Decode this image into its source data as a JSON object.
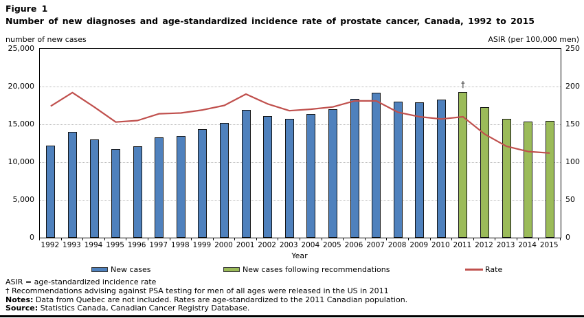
{
  "figure": {
    "label": "Figure 1",
    "title": "Number of new diagnoses and age-standardized incidence rate of prostate cancer, Canada, 1992 to 2015"
  },
  "axes": {
    "left_title": "number of new cases",
    "right_title": "ASIR (per 100,000 men)",
    "x_title": "Year",
    "left_ticks": [
      "25,000",
      "20,000",
      "15,000",
      "10,000",
      "5,000",
      "0"
    ],
    "right_ticks": [
      "250",
      "200",
      "150",
      "100",
      "50",
      "0"
    ]
  },
  "chart_data": {
    "type": "bar+line",
    "categories": [
      1992,
      1993,
      1994,
      1995,
      1996,
      1997,
      1998,
      1999,
      2000,
      2001,
      2002,
      2003,
      2004,
      2005,
      2006,
      2007,
      2008,
      2009,
      2010,
      2011,
      2012,
      2013,
      2014,
      2015
    ],
    "series": [
      {
        "name": "New cases",
        "type": "bar",
        "axis": "left",
        "color": "#4F81BD",
        "values": [
          12200,
          14000,
          13000,
          11700,
          12100,
          13300,
          13500,
          14400,
          15200,
          16900,
          16100,
          15700,
          16400,
          17000,
          18400,
          19200,
          18000,
          17900,
          18300,
          null,
          null,
          null,
          null,
          null
        ]
      },
      {
        "name": "New cases following recommendations",
        "type": "bar",
        "axis": "left",
        "color": "#9BBB59",
        "values": [
          null,
          null,
          null,
          null,
          null,
          null,
          null,
          null,
          null,
          null,
          null,
          null,
          null,
          null,
          null,
          null,
          null,
          null,
          null,
          19300,
          17300,
          15700,
          15400,
          15500
        ]
      },
      {
        "name": "Rate",
        "type": "line",
        "axis": "right",
        "color": "#C0504D",
        "values": [
          174,
          192,
          173,
          153,
          155,
          164,
          165,
          169,
          175,
          190,
          177,
          168,
          170,
          173,
          181,
          181,
          166,
          160,
          157,
          160,
          137,
          121,
          114,
          112
        ]
      }
    ],
    "left_axis": {
      "min": 0,
      "max": 25000,
      "step": 5000
    },
    "right_axis": {
      "min": 0,
      "max": 250,
      "step": 50
    },
    "annotation": {
      "symbol": "†",
      "year": 2011
    },
    "grid": "horizontal-dotted",
    "legend_position": "bottom"
  },
  "footnotes": [
    {
      "bold": "",
      "text": "ASIR = age-standardized incidence rate"
    },
    {
      "bold": "",
      "text": "† Recommendations advising against PSA testing for men of all ages were released in the US in 2011"
    },
    {
      "bold": "Notes:",
      "text": " Data from Quebec are not included. Rates are age-standardized to the 2011 Canadian population."
    },
    {
      "bold": "Source:",
      "text": " Statistics Canada, Canadian Cancer Registry Database."
    }
  ]
}
